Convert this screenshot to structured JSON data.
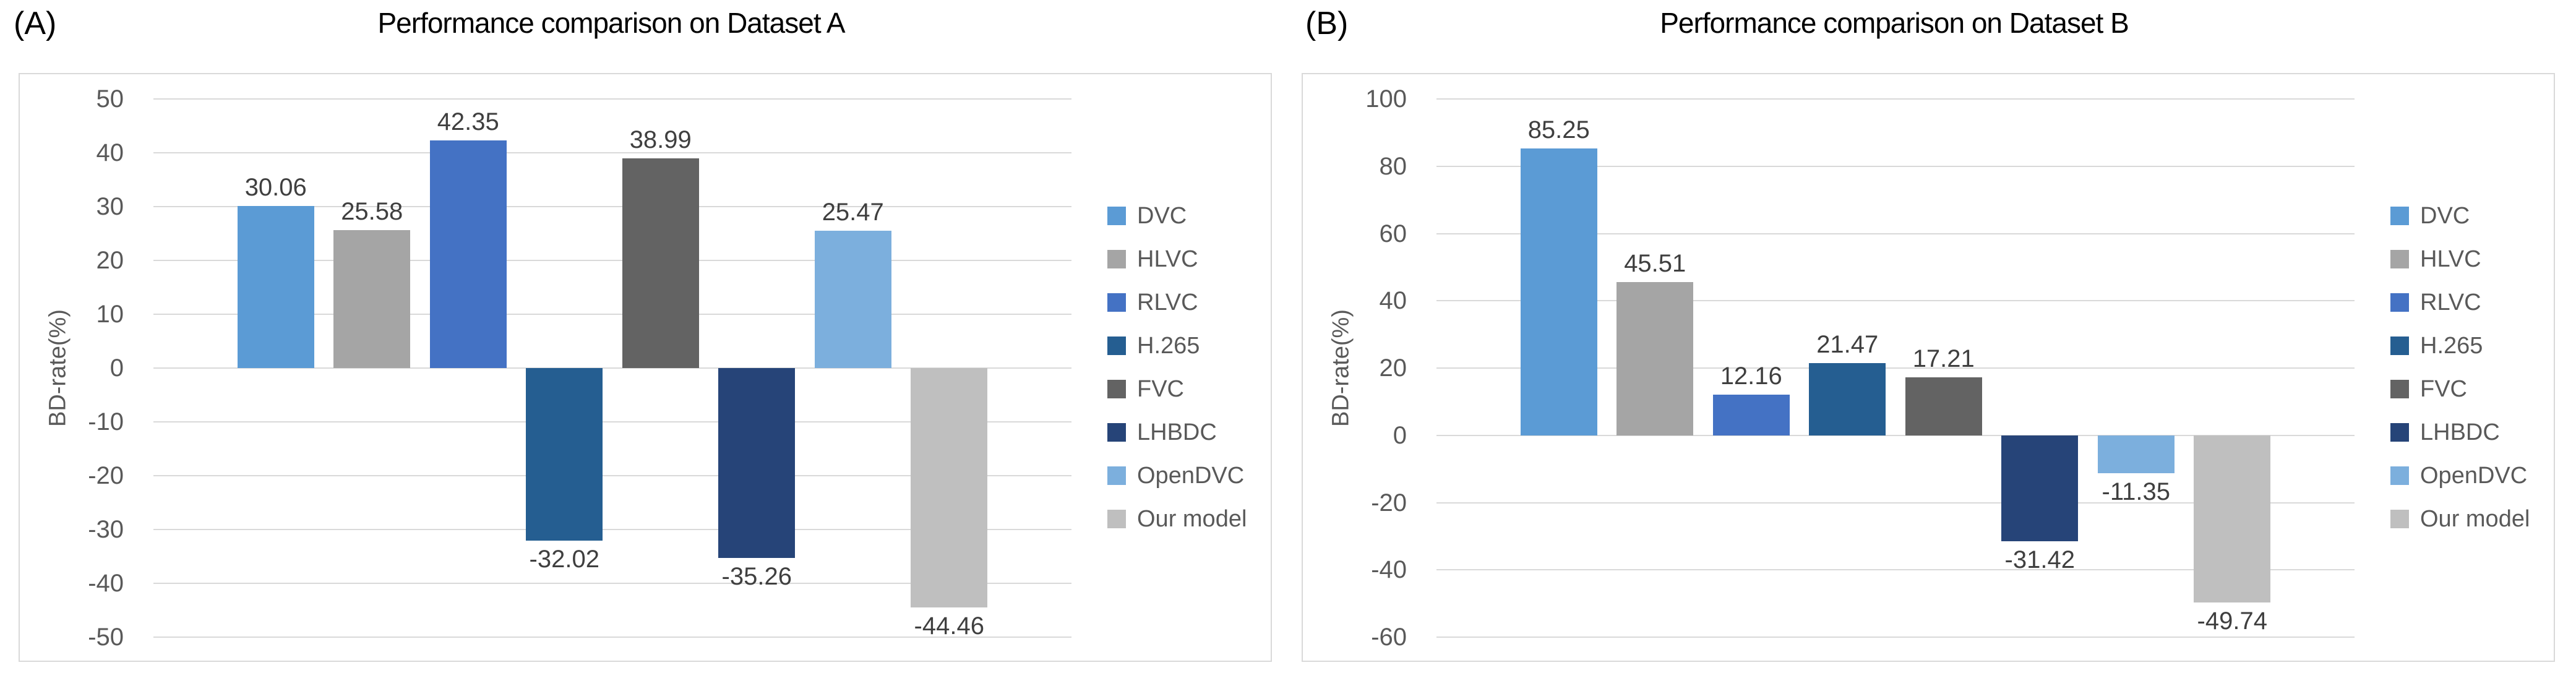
{
  "figure": {
    "background": "#ffffff",
    "style": {
      "grid_color": "#D9D9D9",
      "border_color": "#D9D9D9",
      "tick_text_color": "#595959",
      "value_label_color": "#3F3F3F",
      "title_color": "#000000"
    }
  },
  "chart_data": [
    {
      "type": "bar",
      "panel_label": "(A)",
      "title": "Performance comparison on Dataset A",
      "xlabel": "",
      "ylabel": "BD-rate(%)",
      "ylim": [
        -50,
        50
      ],
      "ytick_step": 10,
      "yticks": [
        "50",
        "40",
        "30",
        "20",
        "10",
        "0",
        "-10",
        "-20",
        "-30",
        "-40",
        "-50"
      ],
      "grid": true,
      "legend_position": "right",
      "categories": [
        "DVC",
        "HLVC",
        "RLVC",
        "H.265",
        "FVC",
        "LHBDC",
        "OpenDVC",
        "Our model"
      ],
      "colors": [
        "#5B9BD5",
        "#A5A5A5",
        "#4472C4",
        "#255E91",
        "#636363",
        "#264478",
        "#7CAFDD",
        "#BFBFBF"
      ],
      "values": [
        30.06,
        25.58,
        42.35,
        -32.02,
        38.99,
        -35.26,
        25.47,
        -44.46
      ],
      "value_labels": [
        "30.06",
        "25.58",
        "42.35",
        "-32.02",
        "38.99",
        "-35.26",
        "25.47",
        "-44.46"
      ]
    },
    {
      "type": "bar",
      "panel_label": "(B)",
      "title": "Performance comparison on Dataset B",
      "xlabel": "",
      "ylabel": "BD-rate(%)",
      "ylim": [
        -60,
        100
      ],
      "ytick_step": 20,
      "yticks": [
        "100",
        "80",
        "60",
        "40",
        "20",
        "0",
        "-20",
        "-40",
        "-60"
      ],
      "grid": true,
      "legend_position": "right",
      "categories": [
        "DVC",
        "HLVC",
        "RLVC",
        "H.265",
        "FVC",
        "LHBDC",
        "OpenDVC",
        "Our model"
      ],
      "colors": [
        "#5B9BD5",
        "#A5A5A5",
        "#4472C4",
        "#255E91",
        "#636363",
        "#264478",
        "#7CAFDD",
        "#BFBFBF"
      ],
      "values": [
        85.25,
        45.51,
        12.16,
        21.47,
        17.21,
        -31.42,
        -11.35,
        -49.74
      ],
      "value_labels": [
        "85.25",
        "45.51",
        "12.16",
        "21.47",
        "17.21",
        "-31.42",
        "-11.35",
        "-49.74"
      ]
    }
  ]
}
